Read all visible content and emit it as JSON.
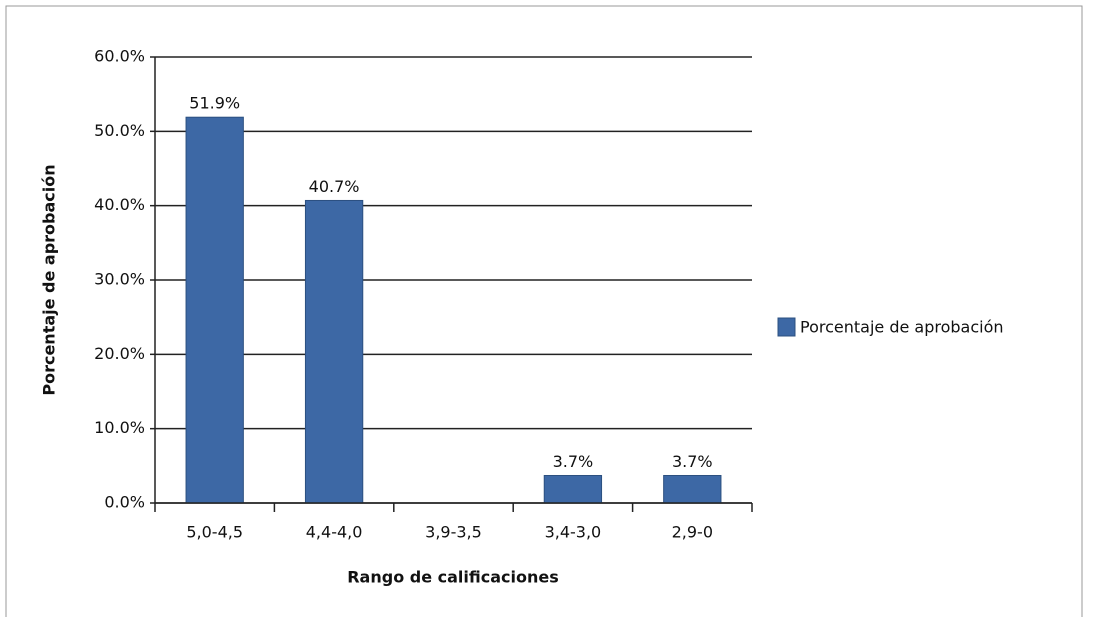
{
  "chart_data": {
    "type": "bar",
    "x_label": "Rango de calificaciones",
    "y_label": "Porcentaje de aprobación",
    "categories": [
      "5,0-4,5",
      "4,4-4,0",
      "3,9-3,5",
      "3,4-3,0",
      "2,9-0"
    ],
    "series": [
      {
        "name": "Porcentaje de aprobación",
        "color": "#3d68a5",
        "values": [
          51.9,
          40.7,
          0,
          3.7,
          3.7
        ],
        "value_labels": [
          "51.9%",
          "40.7%",
          null,
          "3.7%",
          "3.7%"
        ]
      }
    ],
    "ylim": [
      0,
      60
    ],
    "yticks": [
      {
        "value": 0,
        "label": "0.0%"
      },
      {
        "value": 10,
        "label": "10.0%"
      },
      {
        "value": 20,
        "label": "20.0%"
      },
      {
        "value": 30,
        "label": "30.0%"
      },
      {
        "value": 40,
        "label": "40.0%"
      },
      {
        "value": 50,
        "label": "50.0%"
      },
      {
        "value": 60,
        "label": "60.0%"
      }
    ],
    "grid": true,
    "legend": "right"
  }
}
